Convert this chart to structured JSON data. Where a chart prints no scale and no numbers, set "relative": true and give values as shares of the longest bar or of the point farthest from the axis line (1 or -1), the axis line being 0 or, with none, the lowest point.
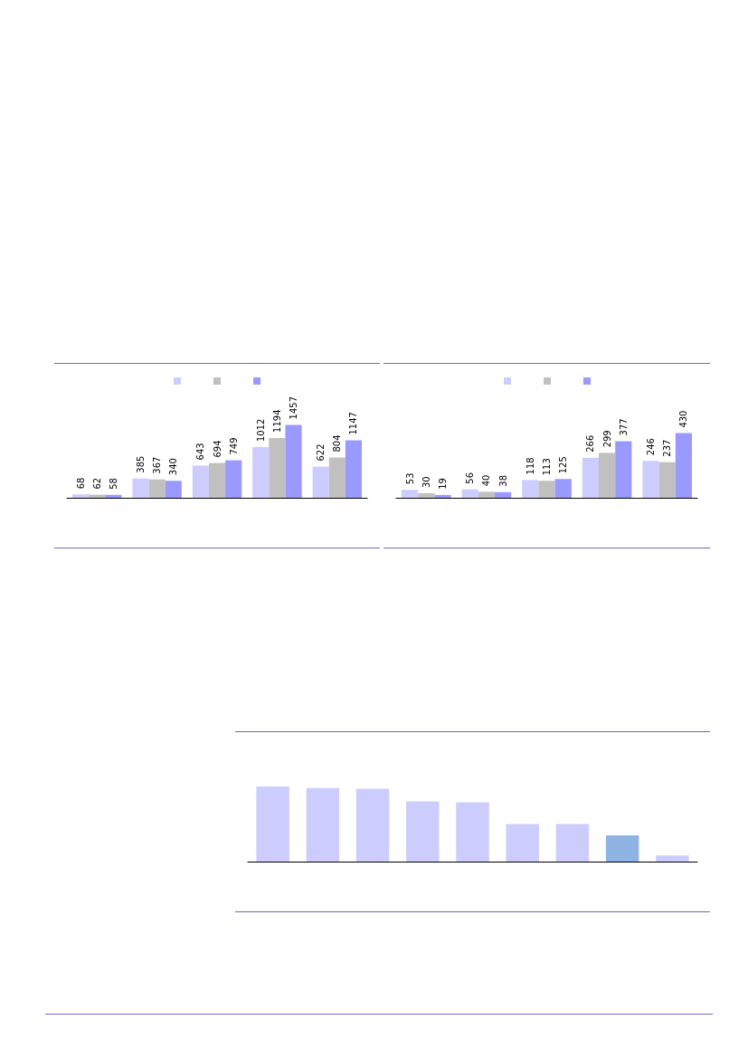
{
  "chart_data": [
    {
      "type": "bar",
      "categories": [
        null,
        null,
        null,
        null,
        null
      ],
      "series": [
        {
          "color": "#ccccff",
          "values": [
            68,
            385,
            643,
            1012,
            622
          ]
        },
        {
          "color": "#c0c0c0",
          "values": [
            62,
            367,
            694,
            1194,
            804
          ]
        },
        {
          "color": "#9999ff",
          "values": [
            58,
            340,
            749,
            1457,
            1147
          ]
        }
      ],
      "data_labels": true
    },
    {
      "type": "bar",
      "categories": [
        null,
        null,
        null,
        null,
        null
      ],
      "series": [
        {
          "color": "#ccccff",
          "values": [
            53,
            56,
            118,
            266,
            246
          ]
        },
        {
          "color": "#c0c0c0",
          "values": [
            30,
            40,
            113,
            299,
            237
          ]
        },
        {
          "color": "#9999ff",
          "values": [
            19,
            38,
            125,
            377,
            430
          ]
        }
      ],
      "data_labels": true
    },
    {
      "type": "bar",
      "relative": true,
      "categories": [
        null,
        null,
        null,
        null,
        null,
        null,
        null,
        null,
        null
      ],
      "values": [
        1,
        0.98,
        0.97,
        0.8,
        0.79,
        0.5,
        0.5,
        0.35,
        0.08
      ],
      "colors": [
        "#ccccff",
        "#ccccff",
        "#ccccff",
        "#ccccff",
        "#ccccff",
        "#ccccff",
        "#ccccff",
        "#8db4e2",
        "#ccccff"
      ],
      "legend": false
    }
  ]
}
